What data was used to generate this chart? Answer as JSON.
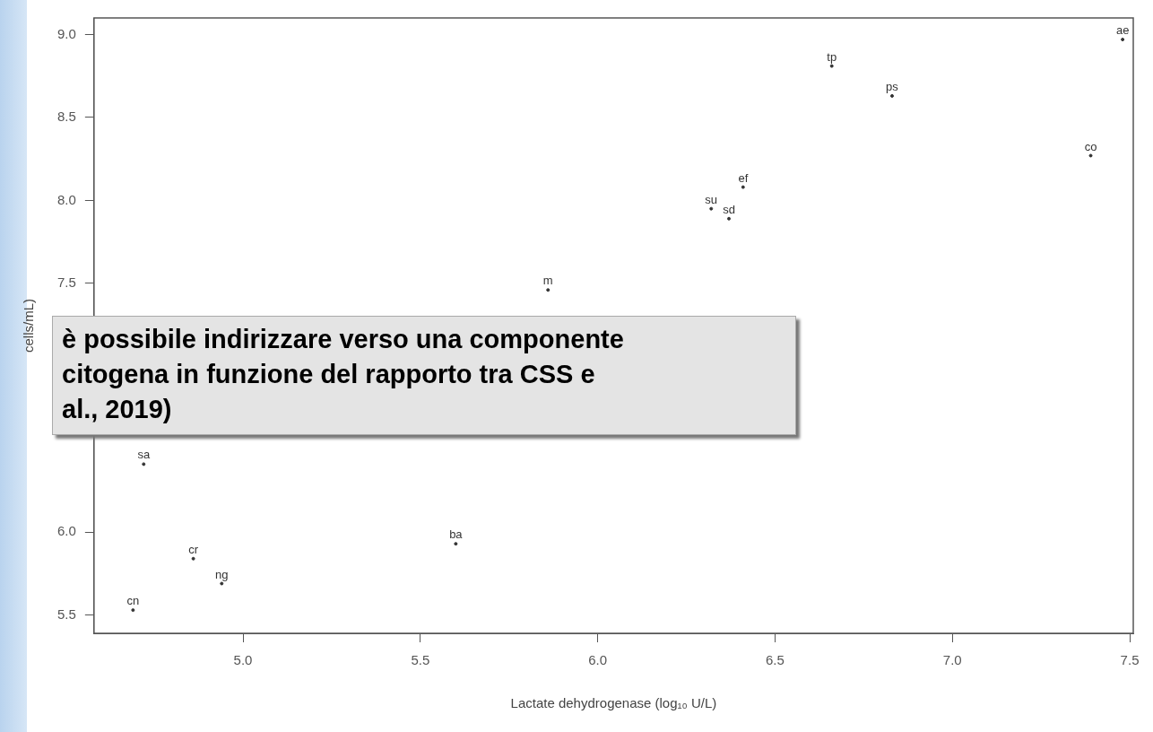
{
  "chart_data": {
    "type": "scatter",
    "xlabel": "Lactate dehydrogenase (log₁₀ U/L)",
    "ylabel": "cells/mL)",
    "annotations": [
      "è possibile indirizzare verso una componente\ncitogena in funzione del rapporto tra CSS e\nal., 2019)"
    ],
    "series": [
      {
        "color": "#333333",
        "x": [
          7.48,
          6.66,
          6.83,
          7.39,
          6.41,
          6.32,
          6.37,
          5.86,
          4.72,
          5.6,
          4.86,
          4.94,
          4.69
        ],
        "values": [
          8.97,
          8.81,
          8.63,
          8.27,
          8.08,
          7.95,
          7.89,
          7.46,
          6.41,
          5.93,
          5.84,
          5.69,
          5.53
        ],
        "value_labels": [
          "ae",
          "tp",
          "ps",
          "co",
          "ef",
          "su",
          "sd",
          "m",
          "sa",
          "ba",
          "cr",
          "ng",
          "cn"
        ]
      }
    ],
    "marker": "circle",
    "xlim": [
      4.58,
      7.51
    ],
    "xticks": [
      {
        "value": 5,
        "label": "5.0"
      },
      5.5,
      {
        "value": 6,
        "label": "6.0"
      },
      6.5,
      {
        "value": 7,
        "label": "7.0"
      },
      7.5
    ],
    "ylim": [
      5.39,
      9.1
    ],
    "yticks": [
      5.5,
      {
        "value": 6,
        "label": "6.0"
      },
      7.5,
      {
        "value": 8,
        "label": "8.0"
      },
      8.5,
      {
        "value": 9,
        "label": "9.0"
      }
    ],
    "grid": false,
    "legend": false
  }
}
